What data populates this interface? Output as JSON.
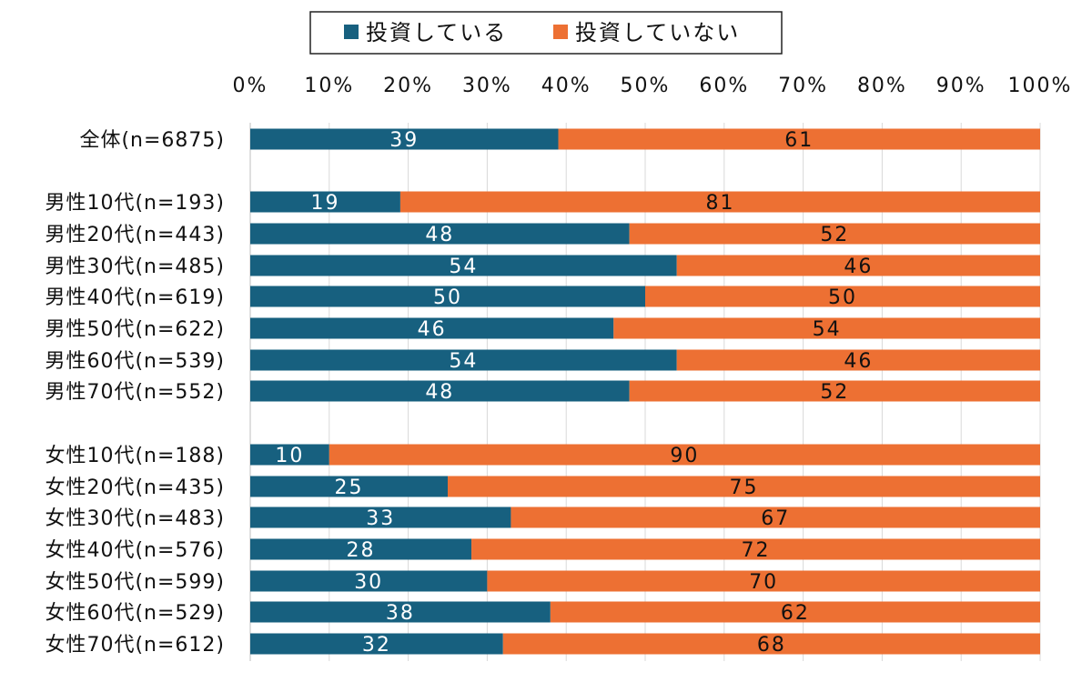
{
  "chart_data": {
    "type": "bar",
    "orientation": "horizontal-stacked-percent",
    "title": "",
    "xlabel": "",
    "ylabel": "",
    "xlim": [
      0,
      100
    ],
    "x_ticks": [
      "0%",
      "10%",
      "20%",
      "30%",
      "40%",
      "50%",
      "60%",
      "70%",
      "80%",
      "90%",
      "100%"
    ],
    "grid": true,
    "legend_position": "top",
    "categories": [
      "全体(n=6875)",
      "男性10代(n=193)",
      "男性20代(n=443)",
      "男性30代(n=485)",
      "男性40代(n=619)",
      "男性50代(n=622)",
      "男性60代(n=539)",
      "男性70代(n=552)",
      "女性10代(n=188)",
      "女性20代(n=435)",
      "女性30代(n=483)",
      "女性40代(n=576)",
      "女性50代(n=599)",
      "女性60代(n=529)",
      "女性70代(n=612)"
    ],
    "groups": [
      [
        0
      ],
      [
        1,
        2,
        3,
        4,
        5,
        6,
        7
      ],
      [
        8,
        9,
        10,
        11,
        12,
        13,
        14
      ]
    ],
    "series": [
      {
        "name": "投資している",
        "color": "#17607f",
        "label_color": "#ffffff",
        "values": [
          39,
          19,
          48,
          54,
          50,
          46,
          54,
          48,
          10,
          25,
          33,
          28,
          30,
          38,
          32
        ]
      },
      {
        "name": "投資していない",
        "color": "#ed7033",
        "label_color": "#111111",
        "values": [
          61,
          81,
          52,
          46,
          50,
          54,
          46,
          52,
          90,
          75,
          67,
          72,
          70,
          62,
          68
        ]
      }
    ]
  }
}
